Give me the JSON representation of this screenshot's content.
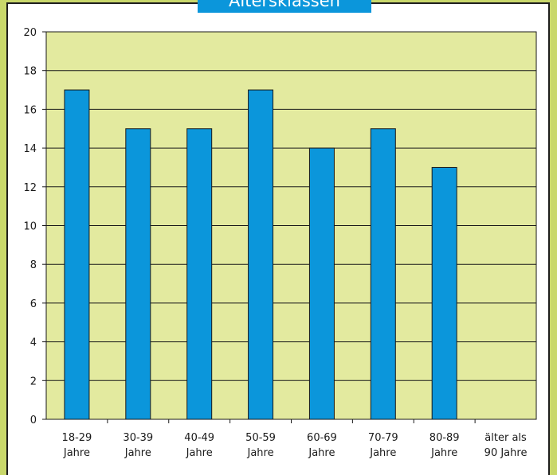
{
  "chart_data": {
    "type": "bar",
    "title": "Altersklassen",
    "categories": [
      [
        "18-29",
        "Jahre"
      ],
      [
        "30-39",
        "Jahre"
      ],
      [
        "40-49",
        "Jahre"
      ],
      [
        "50-59",
        "Jahre"
      ],
      [
        "60-69",
        "Jahre"
      ],
      [
        "70-79",
        "Jahre"
      ],
      [
        "80-89",
        "Jahre"
      ],
      [
        "älter als",
        "90 Jahre"
      ]
    ],
    "values": [
      17,
      15,
      15,
      17,
      14,
      15,
      13,
      0
    ],
    "yticks": [
      "0",
      "2",
      "4",
      "6",
      "8",
      "10",
      "12",
      "14",
      "16",
      "18",
      "20"
    ],
    "ylim": [
      0,
      20
    ],
    "xlabel": "",
    "ylabel": "",
    "grid": true,
    "legend": "none",
    "colors": {
      "bar": "#0b96db",
      "plot_background": "#e3ea9f",
      "page_background": "#c9d86b",
      "title_background": "#0b96db"
    }
  }
}
